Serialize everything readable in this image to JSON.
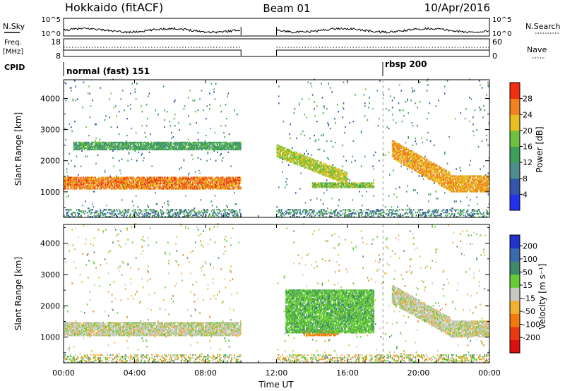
{
  "header": {
    "station": "Hokkaido (fitACF)",
    "beam": "Beam 01",
    "date": "10/Apr/2016"
  },
  "panels": {
    "nsky": {
      "label": "N.Sky",
      "tick_top": "10^5",
      "tick_bottom": "10^0",
      "right_label": "N.Search",
      "right_tick_top": "10^5",
      "right_tick_bottom": "10^0"
    },
    "freq": {
      "label_line1": "Freq.",
      "label_line2": "[MHz]",
      "tick_top": "18",
      "tick_bottom": "8",
      "right_label": "Nave",
      "right_tick_top": "60",
      "right_tick_bottom": "0"
    },
    "cpid": {
      "label": "CPID",
      "mode1": "normal (fast) 151",
      "mode2": "rbsp 200"
    }
  },
  "chart_data": [
    {
      "type": "heatmap",
      "name": "power",
      "ylabel": "Slant Range [km]",
      "xlabel": "",
      "xlim": [
        "00:00",
        "24:00"
      ],
      "ylim": [
        180,
        4600
      ],
      "yticks": [
        1000,
        2000,
        3000,
        4000
      ],
      "colorbar": {
        "label": "Power [dB]",
        "ticks": [
          4,
          8,
          12,
          16,
          20,
          24,
          28
        ],
        "range": [
          0,
          32
        ],
        "colors": [
          "#2233ee",
          "#3355aa",
          "#4f8c8c",
          "#3aa05a",
          "#6ec040",
          "#e6c020",
          "#f08020",
          "#ee3010"
        ]
      },
      "data_gaps": [
        [
          "10:00",
          "12:00"
        ]
      ],
      "features": [
        {
          "label": "strong echo band",
          "start": "00:00",
          "end": "10:00",
          "range_km": [
            1050,
            1450
          ],
          "value_db": 26
        },
        {
          "label": "weak band",
          "start": "00:30",
          "end": "10:00",
          "range_km": [
            2300,
            2600
          ],
          "value_db": 14
        },
        {
          "label": "descending band",
          "start": "12:00",
          "end": "16:00",
          "range_km": [
            1500,
            2500
          ],
          "value_db": 20
        },
        {
          "label": "range band",
          "start": "14:00",
          "end": "17:30",
          "range_km": [
            1100,
            1300
          ],
          "value_db": 18
        },
        {
          "label": "evening band",
          "start": "18:30",
          "end": "24:00",
          "range_km": [
            900,
            2600
          ],
          "value_db": 24
        }
      ]
    },
    {
      "type": "heatmap",
      "name": "velocity",
      "ylabel": "Slant Range [km]",
      "xlabel": "Time UT",
      "xticks": [
        "00:00",
        "04:00",
        "08:00",
        "12:00",
        "16:00",
        "20:00",
        "00:00"
      ],
      "ylim": [
        180,
        4600
      ],
      "yticks": [
        1000,
        2000,
        3000,
        4000
      ],
      "colorbar": {
        "label": "Velocity [m s^-1]",
        "ticks": [
          200,
          100,
          50,
          15,
          -15,
          -50,
          -100,
          -200
        ],
        "range": [
          -250,
          250
        ],
        "colors": [
          "#2233cc",
          "#3a6ab0",
          "#3f8a6a",
          "#66cc33",
          "#c8c8c0",
          "#f0b030",
          "#f07a10",
          "#e83a10",
          "#dd1010"
        ]
      },
      "data_gaps": [
        [
          "10:00",
          "12:00"
        ]
      ],
      "features": [
        {
          "label": "ground scatter band",
          "start": "00:00",
          "end": "10:00",
          "range_km": [
            1000,
            1450
          ],
          "value_ms": 0
        },
        {
          "label": "ground scatter band",
          "start": "18:30",
          "end": "24:00",
          "range_km": [
            900,
            2700
          ],
          "value_ms": 0
        },
        {
          "label": "positive flow",
          "start": "12:30",
          "end": "17:30",
          "range_km": [
            1100,
            2500
          ],
          "value_ms": 40
        },
        {
          "label": "negative flow",
          "start": "13:30",
          "end": "15:30",
          "range_km": [
            1000,
            1200
          ],
          "value_ms": -60
        }
      ]
    }
  ]
}
